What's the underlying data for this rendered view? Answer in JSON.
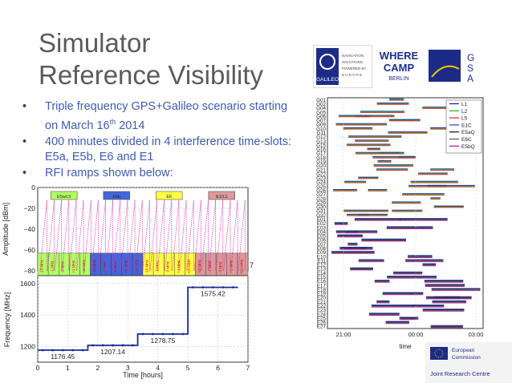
{
  "slide": {
    "title_line1": "Simulator",
    "title_line2": "Reference Visibility",
    "bullets": {
      "b1_pre": "Triple frequency GPS+Galileo scenario starting on March 16",
      "b1_sup": "th",
      "b1_post": " 2014",
      "b2": "400 minutes divided in 4 interference time-slots: E5a, E5b, E6 and E1",
      "b3": "RFI ramps shown below:"
    }
  },
  "logos": {
    "galileo_text": "GALILEO",
    "galileo_tag1": "NAVIGATION",
    "galileo_tag2": "SOLUTIONS",
    "galileo_tag3": "POWERED BY",
    "galileo_tag4": "E U R O P E",
    "where_camp1": "WHERE",
    "where_camp2": "CAMP",
    "where_camp3": "BERLIN",
    "gsa1": "G",
    "gsa2": "S",
    "gsa3": "A",
    "footer_org1": "European",
    "footer_org2": "Commission",
    "footer_jrc": "Joint Research Centre"
  },
  "chart_data": [
    {
      "type": "line",
      "title": "",
      "ylabel": "Amplitude [dBm]",
      "ylim": [
        -80,
        0
      ],
      "yticks": [
        "0",
        "−20",
        "−40",
        "−60",
        "−80"
      ],
      "slots": [
        {
          "name": "E5a/L5",
          "color": "#b2ff66"
        },
        {
          "name": "E5b",
          "color": "#4466dd"
        },
        {
          "name": "E6",
          "color": "#ffff44"
        },
        {
          "name": "E1/L1",
          "color": "#d99a9a"
        }
      ],
      "offset_labels": [
        "-10 MHz",
        "-1 MHz",
        "0 MHz",
        "+1 MHz",
        "+10 MHz"
      ],
      "ramps_per_slot": 7,
      "ramp_start_dbm": -80,
      "ramp_end_dbm": -12,
      "extra_tick": "7",
      "series_color": "#cc33aa"
    },
    {
      "type": "line",
      "xlabel": "Time [hours]",
      "ylabel": "Frequency [MHz]",
      "xlim": [
        0,
        7
      ],
      "ylim": [
        1100,
        1650
      ],
      "xticks": [
        "0",
        "1",
        "2",
        "3",
        "4",
        "5",
        "6",
        "7"
      ],
      "yticks": [
        "1200",
        "1400",
        "1600"
      ],
      "steps": [
        {
          "t0": 0.0,
          "t1": 1.67,
          "f": 1176.45,
          "label": "1176.45"
        },
        {
          "t0": 1.67,
          "t1": 3.33,
          "f": 1207.14,
          "label": "1207.14"
        },
        {
          "t0": 3.33,
          "t1": 5.0,
          "f": 1278.75,
          "label": "1278.75"
        },
        {
          "t0": 5.0,
          "t1": 6.67,
          "f": 1575.42,
          "label": "1575.42"
        }
      ],
      "series_color": "#1a2aa0"
    },
    {
      "type": "timeline",
      "xlabel": "time",
      "xticks": [
        "21:00",
        "00:00",
        "03:00"
      ],
      "satellites": [
        "G01",
        "G02",
        "G04",
        "G05",
        "G06",
        "G07",
        "G09",
        "G10",
        "G11",
        "G12",
        "G13",
        "G15",
        "G16",
        "G17",
        "G18",
        "G19",
        "G20",
        "G21",
        "G22",
        "G23",
        "G24",
        "G25",
        "G26",
        "G27",
        "G28",
        "G29",
        "G30",
        "G31",
        "G32",
        "E01",
        "E02",
        "E03",
        "E04",
        "E05",
        "E06",
        "E07",
        "E08",
        "E09",
        "E10",
        "E11",
        "E12",
        "E13",
        "E14",
        "E15",
        "E16",
        "E17",
        "E18",
        "E19",
        "E20",
        "E21",
        "E22",
        "E23",
        "E24",
        "E25",
        "E26",
        "E27"
      ],
      "legend": [
        {
          "name": "L1",
          "color": "#1a1aa0"
        },
        {
          "name": "L2",
          "color": "#22aa22"
        },
        {
          "name": "L5",
          "color": "#dd2222"
        },
        {
          "name": "E1C",
          "color": "#2244cc"
        },
        {
          "name": "E5aQ",
          "color": "#111111"
        },
        {
          "name": "E6C",
          "color": "#555555"
        },
        {
          "name": "E5bQ",
          "color": "#aa1199"
        }
      ]
    }
  ]
}
